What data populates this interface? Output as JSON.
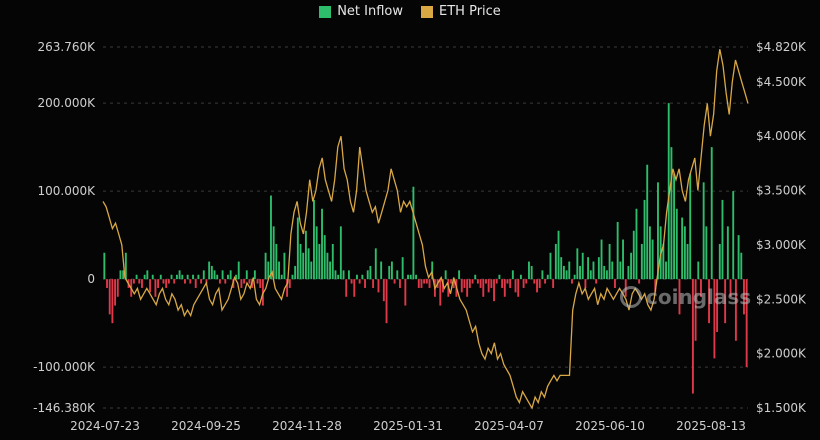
{
  "legend": {
    "inflow_label": "Net Inflow",
    "price_label": "ETH Price"
  },
  "watermark": "coinglass",
  "colors": {
    "positive": "#2ebd6b",
    "negative": "#e0394a",
    "price": "#d9a845",
    "grid": "#3a3a3a",
    "text": "#cfcfcf"
  },
  "chart_data": {
    "type": "bar",
    "y_left_ticks": [
      "263.760K",
      "200.000K",
      "100.000K",
      "0",
      "-100.000K",
      "-146.380K"
    ],
    "y_right_ticks": [
      "$4.820K",
      "$4.500K",
      "$4.000K",
      "$3.500K",
      "$3.000K",
      "$2.500K",
      "$2.000K",
      "$1.500K"
    ],
    "x_ticks": [
      "2024-07-23",
      "2024-09-25",
      "2024-11-28",
      "2025-01-31",
      "2025-04-07",
      "2025-06-10",
      "2025-08-13"
    ],
    "y_left_range": [
      -146380,
      263760
    ],
    "y_right_range": [
      1500,
      4820
    ],
    "series": [
      {
        "name": "Net Inflow",
        "unit": "USD",
        "note": "daily net flow, one value per trading day",
        "values": [
          30000,
          -10000,
          -40000,
          -50000,
          -30000,
          -20000,
          10000,
          10000,
          30000,
          -10000,
          -20000,
          -5000,
          5000,
          -5000,
          -10000,
          5000,
          10000,
          -15000,
          5000,
          -20000,
          -10000,
          5000,
          -5000,
          -10000,
          -5000,
          5000,
          -5000,
          5000,
          10000,
          5000,
          -5000,
          5000,
          -5000,
          5000,
          -10000,
          5000,
          -5000,
          10000,
          -5000,
          20000,
          15000,
          10000,
          5000,
          -5000,
          10000,
          -5000,
          5000,
          10000,
          -10000,
          5000,
          20000,
          -10000,
          -5000,
          10000,
          -5000,
          -10000,
          10000,
          -5000,
          -10000,
          -30000,
          30000,
          20000,
          95000,
          60000,
          40000,
          20000,
          5000,
          30000,
          -20000,
          -10000,
          5000,
          15000,
          70000,
          40000,
          30000,
          55000,
          35000,
          20000,
          90000,
          60000,
          40000,
          80000,
          50000,
          30000,
          20000,
          40000,
          10000,
          5000,
          60000,
          10000,
          -20000,
          10000,
          -5000,
          -20000,
          5000,
          -5000,
          5000,
          -10000,
          10000,
          15000,
          -10000,
          35000,
          -15000,
          20000,
          -25000,
          -50000,
          15000,
          20000,
          -5000,
          10000,
          -10000,
          25000,
          -30000,
          5000,
          5000,
          105000,
          5000,
          -10000,
          -10000,
          -5000,
          -5000,
          -10000,
          20000,
          -20000,
          -10000,
          -30000,
          -15000,
          10000,
          -20000,
          -5000,
          -10000,
          -20000,
          10000,
          -15000,
          -10000,
          -20000,
          -10000,
          -5000,
          5000,
          -5000,
          -10000,
          -20000,
          -5000,
          -15000,
          -10000,
          -25000,
          -5000,
          5000,
          -10000,
          -20000,
          -5000,
          -10000,
          10000,
          -15000,
          -20000,
          5000,
          -10000,
          -5000,
          20000,
          15000,
          -5000,
          -15000,
          -10000,
          10000,
          -5000,
          5000,
          30000,
          -10000,
          40000,
          55000,
          25000,
          15000,
          10000,
          20000,
          -5000,
          5000,
          35000,
          15000,
          30000,
          -10000,
          25000,
          10000,
          20000,
          -5000,
          25000,
          45000,
          15000,
          10000,
          40000,
          20000,
          -10000,
          65000,
          20000,
          45000,
          -20000,
          15000,
          30000,
          55000,
          80000,
          -5000,
          40000,
          90000,
          130000,
          60000,
          45000,
          -15000,
          110000,
          60000,
          40000,
          20000,
          200000,
          150000,
          120000,
          80000,
          -40000,
          70000,
          60000,
          40000,
          120000,
          -130000,
          -70000,
          20000,
          -20000,
          110000,
          60000,
          -50000,
          150000,
          -90000,
          -60000,
          40000,
          90000,
          -50000,
          60000,
          -20000,
          100000,
          -70000,
          50000,
          30000,
          -40000,
          -100000
        ]
      },
      {
        "name": "ETH Price",
        "unit": "USD",
        "values": [
          3400,
          3350,
          3250,
          3150,
          3200,
          3100,
          3000,
          2700,
          2650,
          2600,
          2550,
          2600,
          2500,
          2550,
          2600,
          2550,
          2500,
          2450,
          2550,
          2600,
          2500,
          2450,
          2550,
          2500,
          2400,
          2450,
          2350,
          2400,
          2350,
          2450,
          2500,
          2550,
          2600,
          2650,
          2500,
          2450,
          2550,
          2600,
          2400,
          2450,
          2500,
          2600,
          2700,
          2650,
          2500,
          2550,
          2650,
          2600,
          2700,
          2500,
          2450,
          2550,
          2600,
          2700,
          2750,
          2600,
          2550,
          2500,
          2600,
          2650,
          3100,
          3300,
          3400,
          3200,
          3100,
          3300,
          3600,
          3400,
          3500,
          3700,
          3800,
          3600,
          3500,
          3400,
          3600,
          3900,
          4000,
          3700,
          3600,
          3400,
          3300,
          3500,
          3900,
          3700,
          3500,
          3400,
          3300,
          3350,
          3200,
          3300,
          3400,
          3500,
          3700,
          3600,
          3500,
          3300,
          3400,
          3350,
          3400,
          3300,
          3200,
          3100,
          3000,
          2800,
          2700,
          2750,
          2600,
          2650,
          2700,
          2600,
          2650,
          2550,
          2700,
          2600,
          2500,
          2450,
          2400,
          2300,
          2200,
          2250,
          2100,
          2000,
          1950,
          2050,
          2000,
          2100,
          1950,
          2000,
          1900,
          1850,
          1800,
          1700,
          1600,
          1550,
          1650,
          1600,
          1550,
          1500,
          1600,
          1550,
          1650,
          1600,
          1700,
          1750,
          1800,
          1750,
          1800,
          1800,
          1800,
          1800,
          2400,
          2550,
          2650,
          2550,
          2600,
          2500,
          2550,
          2600,
          2450,
          2550,
          2500,
          2600,
          2550,
          2500,
          2550,
          2600,
          2550,
          2500,
          2400,
          2550,
          2600,
          2550,
          2500,
          2550,
          2450,
          2400,
          2500,
          2700,
          2900,
          3000,
          3300,
          3500,
          3700,
          3600,
          3700,
          3500,
          3400,
          3600,
          3700,
          3800,
          3500,
          3800,
          4100,
          4300,
          4000,
          4200,
          4600,
          4800,
          4650,
          4400,
          4200,
          4500,
          4700,
          4600,
          4500,
          4400,
          4300
        ]
      }
    ],
    "legend_position": "top-center",
    "grid": true
  }
}
